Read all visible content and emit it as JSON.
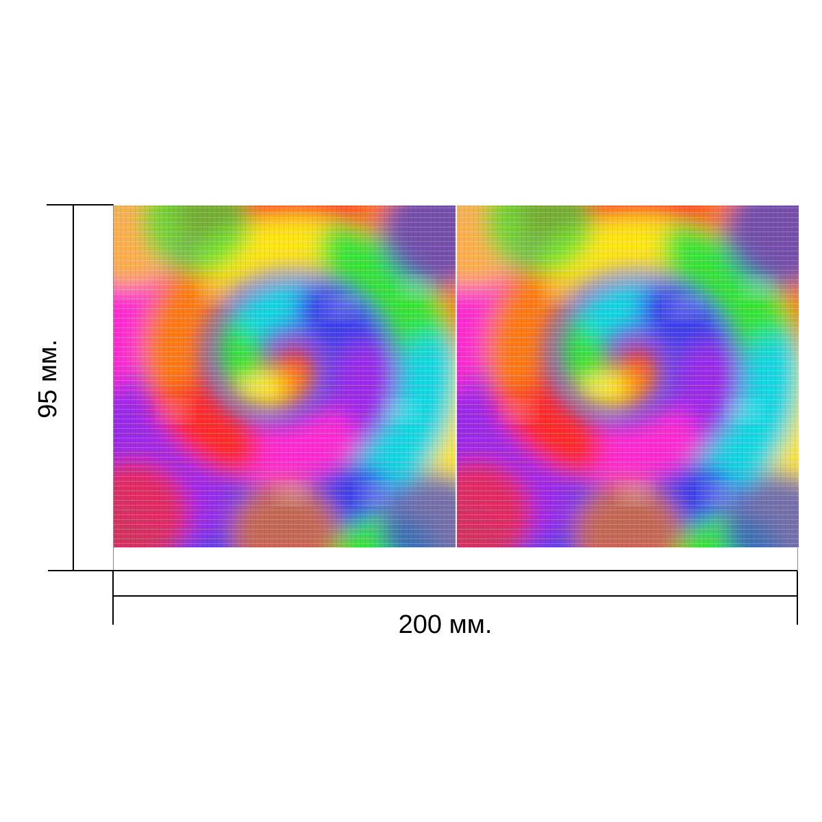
{
  "diagram": {
    "width_label": "200 мм.",
    "height_label": "95 мм."
  },
  "pattern": {
    "name": "tie-dye-spiral",
    "tile_count": 2,
    "palette": [
      "#ff2a2a",
      "#ff7a1a",
      "#ffe51a",
      "#39e33a",
      "#19d6e0",
      "#3b3fe8",
      "#9b2de8",
      "#ff2ad0"
    ]
  }
}
